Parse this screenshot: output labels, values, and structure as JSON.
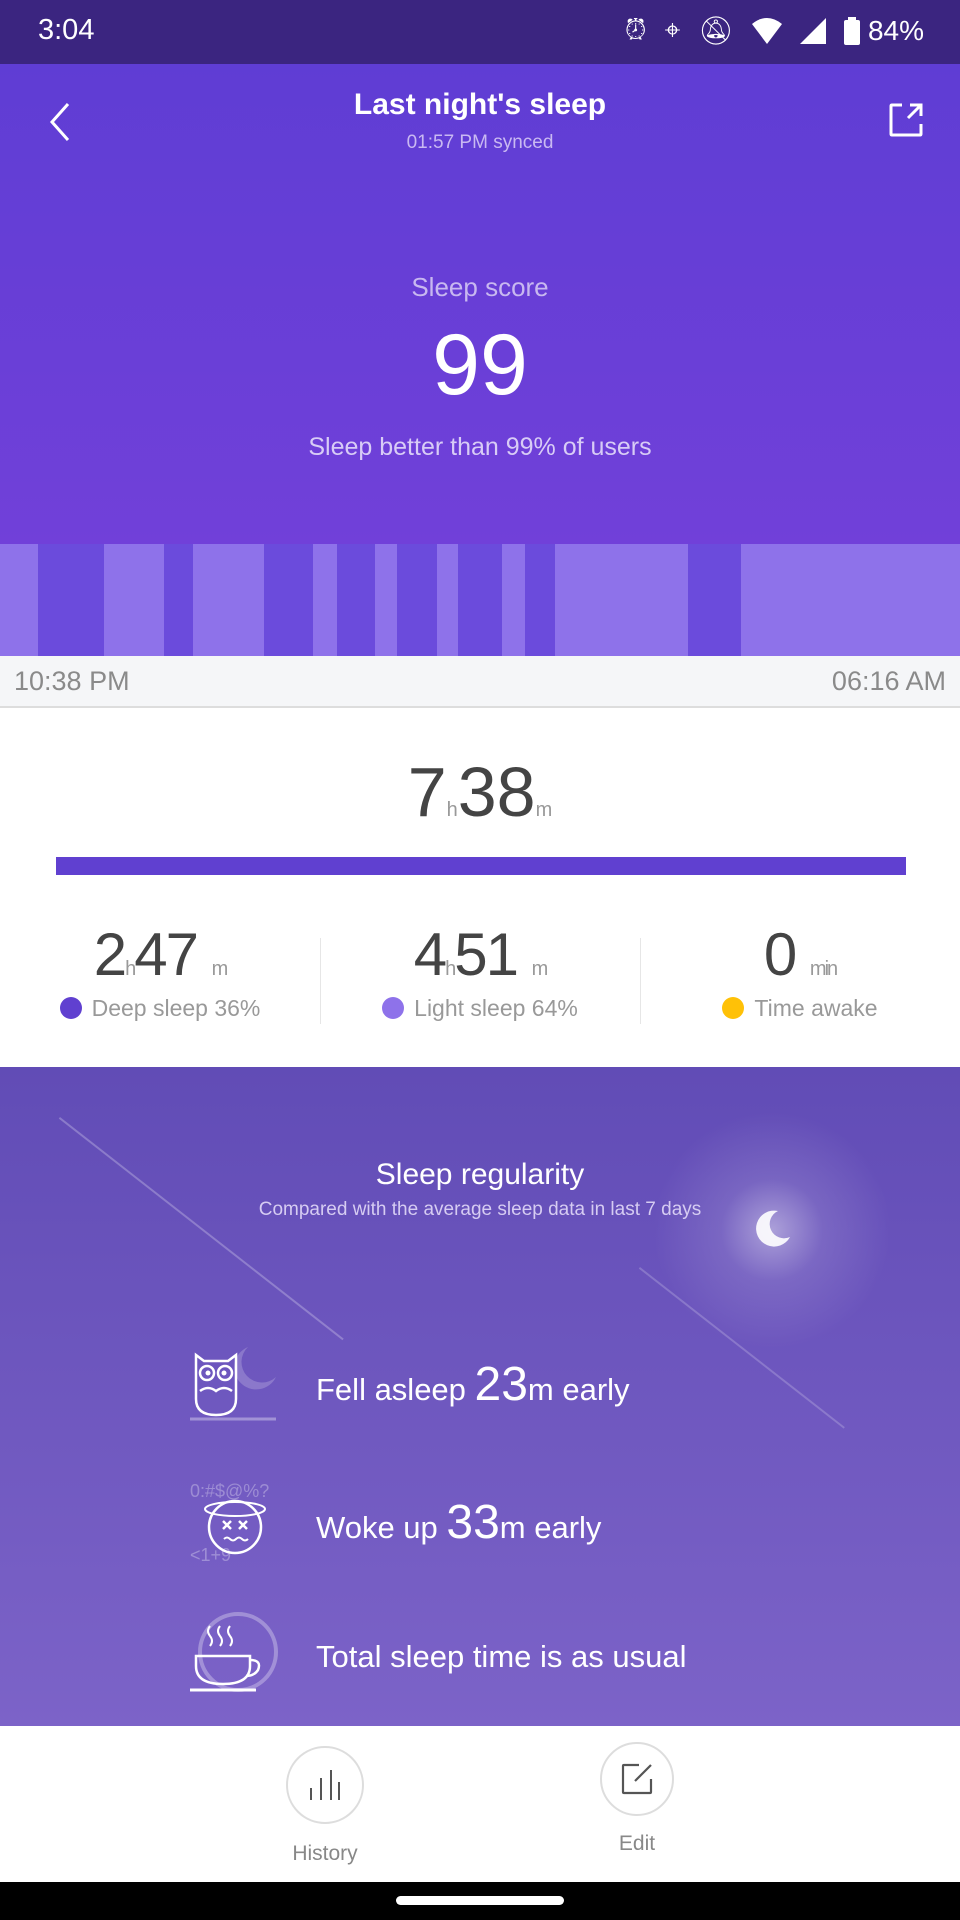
{
  "status_bar": {
    "time": "3:04",
    "battery": "84%",
    "icons": [
      "alarm-icon",
      "location-icon",
      "bell-off-icon",
      "wifi-icon",
      "signal-icon",
      "battery-icon"
    ]
  },
  "header": {
    "title": "Last night's sleep",
    "synced": "01:57 PM synced",
    "back_icon": "chevron-left-icon",
    "share_icon": "share-icon"
  },
  "score": {
    "label": "Sleep score",
    "value": "99",
    "comparison": "Sleep better than 99% of users"
  },
  "timeline": {
    "start": "10:38 PM",
    "end": "06:16 AM",
    "colors": {
      "deep": "#6b4bdc",
      "light": "#8e72ea"
    }
  },
  "total": {
    "hours": "7",
    "h_unit": "h",
    "minutes": "38",
    "m_unit": "m"
  },
  "stats": [
    {
      "hours": "2",
      "h_unit": "h",
      "minutes": "47",
      "m_unit": "m",
      "label": "Deep sleep 36%",
      "color": "#6040d0"
    },
    {
      "hours": "4",
      "h_unit": "h",
      "minutes": "51",
      "m_unit": "m",
      "label": "Light sleep 64%",
      "color": "#8e72ea"
    },
    {
      "value": "0",
      "unit": "min",
      "label": "Time awake",
      "color": "#ffc107"
    }
  ],
  "regularity": {
    "title": "Sleep regularity",
    "subtitle": "Compared with the average sleep data in last 7 days",
    "items": [
      {
        "icon": "owl-icon",
        "prefix": "Fell asleep ",
        "value": "23",
        "suffix": "m early"
      },
      {
        "icon": "dizzy-face-icon",
        "prefix": "Woke up ",
        "value": "33",
        "suffix": "m early"
      },
      {
        "icon": "coffee-cup-icon",
        "text": "Total sleep time is as usual"
      }
    ]
  },
  "bottom_nav": {
    "history": "History",
    "edit": "Edit"
  }
}
